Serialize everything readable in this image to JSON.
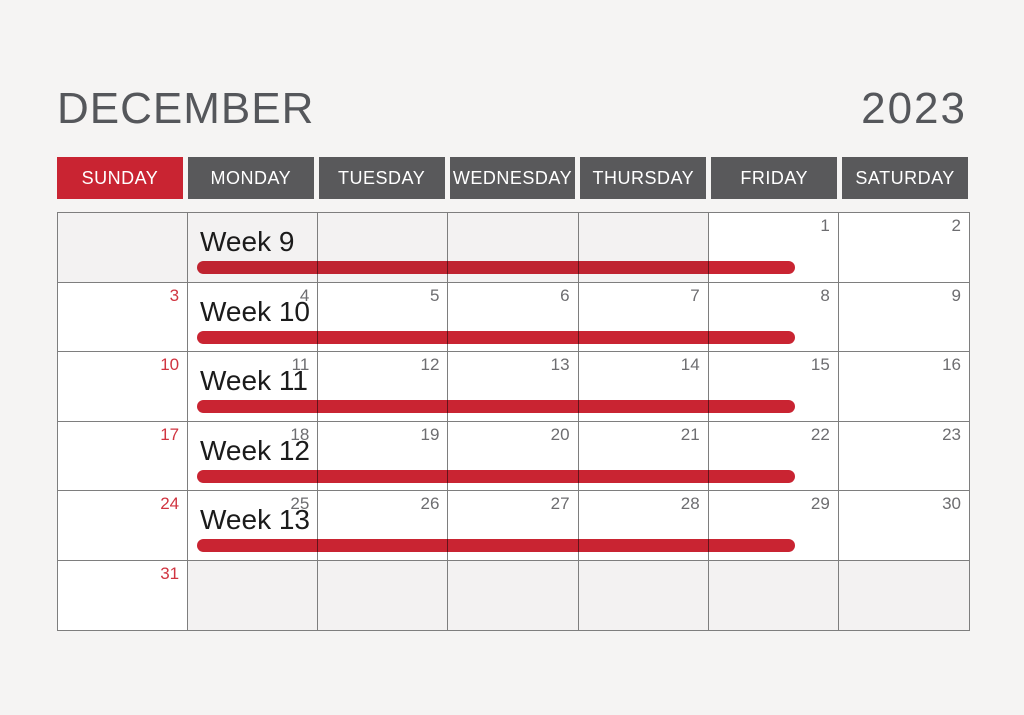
{
  "title": {
    "month": "DECEMBER",
    "year": "2023"
  },
  "colors": {
    "accent_red": "#c92432",
    "sunday_number_red": "#d03440",
    "header_gray": "#59595b",
    "grid_border": "#7e7e7e",
    "title_gray": "#55575b",
    "day_number_gray": "#6d6d70",
    "out_of_month_bg": "#f3f2f2",
    "in_month_bg": "#ffffff",
    "page_bg": "#f5f4f3"
  },
  "day_headers": [
    {
      "label": "SUNDAY",
      "accent": true
    },
    {
      "label": "MONDAY",
      "accent": false
    },
    {
      "label": "TUESDAY",
      "accent": false
    },
    {
      "label": "WEDNESDAY",
      "accent": false
    },
    {
      "label": "THURSDAY",
      "accent": false
    },
    {
      "label": "FRIDAY",
      "accent": false
    },
    {
      "label": "SATURDAY",
      "accent": false
    }
  ],
  "weeks": [
    {
      "label": "Week 9",
      "bar": true,
      "days": [
        {
          "num": "",
          "out": true
        },
        {
          "num": "",
          "out": true
        },
        {
          "num": "",
          "out": true
        },
        {
          "num": "",
          "out": true
        },
        {
          "num": "",
          "out": true
        },
        {
          "num": "1",
          "out": false
        },
        {
          "num": "2",
          "out": false
        }
      ]
    },
    {
      "label": "Week 10",
      "bar": true,
      "days": [
        {
          "num": "3",
          "out": false
        },
        {
          "num": "4",
          "out": false
        },
        {
          "num": "5",
          "out": false
        },
        {
          "num": "6",
          "out": false
        },
        {
          "num": "7",
          "out": false
        },
        {
          "num": "8",
          "out": false
        },
        {
          "num": "9",
          "out": false
        }
      ]
    },
    {
      "label": "Week 11",
      "bar": true,
      "days": [
        {
          "num": "10",
          "out": false
        },
        {
          "num": "11",
          "out": false
        },
        {
          "num": "12",
          "out": false
        },
        {
          "num": "13",
          "out": false
        },
        {
          "num": "14",
          "out": false
        },
        {
          "num": "15",
          "out": false
        },
        {
          "num": "16",
          "out": false
        }
      ]
    },
    {
      "label": "Week 12",
      "bar": true,
      "days": [
        {
          "num": "17",
          "out": false
        },
        {
          "num": "18",
          "out": false
        },
        {
          "num": "19",
          "out": false
        },
        {
          "num": "20",
          "out": false
        },
        {
          "num": "21",
          "out": false
        },
        {
          "num": "22",
          "out": false
        },
        {
          "num": "23",
          "out": false
        }
      ]
    },
    {
      "label": "Week 13",
      "bar": true,
      "days": [
        {
          "num": "24",
          "out": false
        },
        {
          "num": "25",
          "out": false
        },
        {
          "num": "26",
          "out": false
        },
        {
          "num": "27",
          "out": false
        },
        {
          "num": "28",
          "out": false
        },
        {
          "num": "29",
          "out": false
        },
        {
          "num": "30",
          "out": false
        }
      ]
    },
    {
      "label": "",
      "bar": false,
      "days": [
        {
          "num": "31",
          "out": false
        },
        {
          "num": "",
          "out": true
        },
        {
          "num": "",
          "out": true
        },
        {
          "num": "",
          "out": true
        },
        {
          "num": "",
          "out": true
        },
        {
          "num": "",
          "out": true
        },
        {
          "num": "",
          "out": true
        }
      ]
    }
  ]
}
